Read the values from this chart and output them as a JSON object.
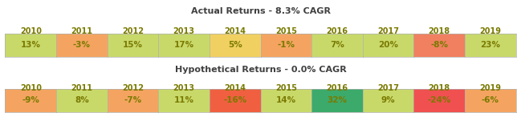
{
  "table1": {
    "title": "Actual Returns - 8.3% CAGR",
    "years": [
      "2010",
      "2011",
      "2012",
      "2013",
      "2014",
      "2015",
      "2016",
      "2017",
      "2018",
      "2019"
    ],
    "values": [
      "13%",
      "-3%",
      "15%",
      "17%",
      "5%",
      "-1%",
      "7%",
      "20%",
      "-8%",
      "23%"
    ],
    "colors": [
      "#c8d96a",
      "#f4a460",
      "#c8d96a",
      "#c8d96a",
      "#f0d060",
      "#f4a460",
      "#c8d96a",
      "#c8d96a",
      "#f08060",
      "#c8d96a"
    ]
  },
  "table2": {
    "title": "Hypothetical Returns - 0.0% CAGR",
    "years": [
      "2010",
      "2011",
      "2012",
      "2013",
      "2014",
      "2015",
      "2016",
      "2017",
      "2018",
      "2019"
    ],
    "values": [
      "-9%",
      "8%",
      "-7%",
      "11%",
      "-16%",
      "14%",
      "32%",
      "9%",
      "-24%",
      "-6%"
    ],
    "colors": [
      "#f4a460",
      "#c8d96a",
      "#f4a460",
      "#c8d96a",
      "#f06040",
      "#c8d96a",
      "#3caa6a",
      "#c8d96a",
      "#f05050",
      "#f4a460"
    ]
  },
  "year_color": "#7a7a00",
  "value_color": "#7a7a00",
  "title_color": "#404040",
  "bg_color": "#ffffff"
}
